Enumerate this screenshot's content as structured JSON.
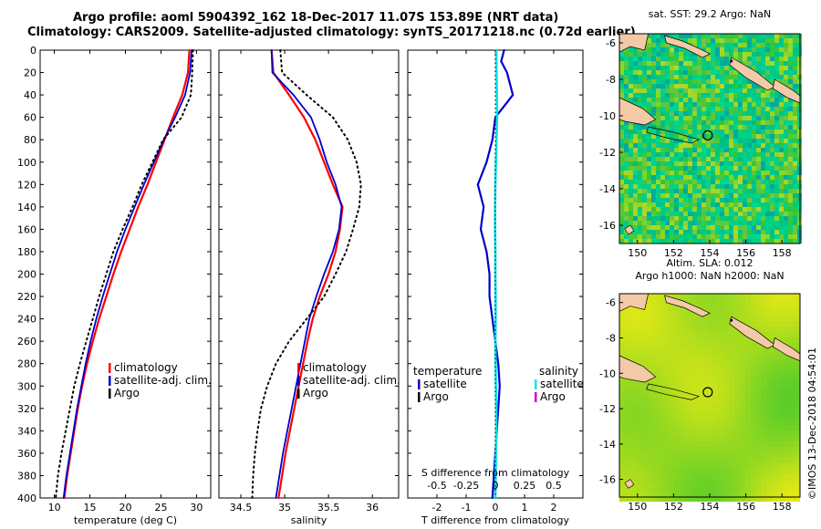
{
  "header": {
    "line1": "Argo profile: aoml 5904392_162 18-Dec-2017 11.07S 153.89E (NRT data)",
    "line2": "Climatology: CARS2009. Satellite-adjusted climatology: synTS_20171218.nc (0.72d earlier)"
  },
  "credit": "©IMOS 13-Dec-2018 04:54:01",
  "colors": {
    "climatology": "#ff0000",
    "satellite": "#0000cc",
    "argo": "#000000",
    "sat_salinity": "#00e5ee",
    "argo_salinity": "#cc00cc",
    "land": "#f4c9a8"
  },
  "depth_ticks": [
    "0",
    "20",
    "40",
    "60",
    "80",
    "100",
    "120",
    "140",
    "160",
    "180",
    "200",
    "220",
    "240",
    "260",
    "280",
    "300",
    "320",
    "340",
    "360",
    "380",
    "400"
  ],
  "chart_data": [
    {
      "type": "line",
      "name": "temperature",
      "xlabel": "temperature (deg C)",
      "ylabel": "depth",
      "xlim": [
        8,
        32
      ],
      "ylim": [
        400,
        0
      ],
      "xticks": [
        "10",
        "15",
        "20",
        "25",
        "30"
      ],
      "legend": [
        "climatology",
        "satellite-adj. clim.",
        "Argo"
      ],
      "legend_position": "lower-right",
      "series": [
        {
          "name": "climatology",
          "depth": [
            0,
            20,
            40,
            60,
            80,
            100,
            120,
            140,
            160,
            180,
            200,
            220,
            240,
            260,
            280,
            300,
            320,
            340,
            360,
            380,
            400
          ],
          "values": [
            29.0,
            28.8,
            28.0,
            26.7,
            25.5,
            24.3,
            23.1,
            21.8,
            20.6,
            19.4,
            18.3,
            17.3,
            16.3,
            15.4,
            14.6,
            13.9,
            13.3,
            12.8,
            12.3,
            11.8,
            11.4
          ]
        },
        {
          "name": "satellite-adj. clim.",
          "depth": [
            0,
            20,
            40,
            60,
            80,
            100,
            120,
            140,
            160,
            180,
            200,
            220,
            240,
            260,
            280,
            300,
            320,
            340,
            360,
            380,
            400
          ],
          "values": [
            29.3,
            29.1,
            28.4,
            27.0,
            25.4,
            24.0,
            22.6,
            21.3,
            20.0,
            18.8,
            17.8,
            16.8,
            15.9,
            15.1,
            14.4,
            13.8,
            13.2,
            12.7,
            12.2,
            11.7,
            11.3
          ]
        },
        {
          "name": "Argo",
          "depth": [
            0,
            20,
            40,
            60,
            80,
            100,
            120,
            140,
            160,
            180,
            200,
            220,
            240,
            260,
            280,
            300,
            320,
            340,
            360,
            380,
            400
          ],
          "values": [
            29.5,
            29.4,
            29.2,
            27.9,
            25.3,
            23.8,
            22.3,
            21.0,
            19.6,
            18.3,
            17.3,
            16.3,
            15.4,
            14.5,
            13.6,
            12.8,
            12.2,
            11.6,
            11.0,
            10.5,
            10.2
          ]
        }
      ]
    },
    {
      "type": "line",
      "name": "salinity",
      "xlabel": "salinity",
      "ylabel": "depth",
      "xlim": [
        34.25,
        36.3
      ],
      "ylim": [
        400,
        0
      ],
      "xticks": [
        "34.5",
        "35",
        "35.5",
        "36"
      ],
      "legend": [
        "climatology",
        "satellite-adj. clim.",
        "Argo"
      ],
      "legend_position": "lower-right",
      "series": [
        {
          "name": "climatology",
          "depth": [
            0,
            20,
            40,
            60,
            80,
            100,
            120,
            140,
            160,
            180,
            200,
            220,
            240,
            260,
            280,
            300,
            320,
            340,
            360,
            380,
            400
          ],
          "values": [
            34.85,
            34.87,
            35.05,
            35.22,
            35.35,
            35.45,
            35.55,
            35.66,
            35.63,
            35.58,
            35.5,
            35.4,
            35.32,
            35.26,
            35.21,
            35.16,
            35.11,
            35.06,
            35.01,
            34.97,
            34.93
          ]
        },
        {
          "name": "satellite-adj. clim.",
          "depth": [
            0,
            20,
            40,
            60,
            80,
            100,
            120,
            140,
            160,
            180,
            200,
            220,
            240,
            260,
            280,
            300,
            320,
            340,
            360,
            380,
            400
          ],
          "values": [
            34.85,
            34.86,
            35.1,
            35.3,
            35.4,
            35.48,
            35.58,
            35.65,
            35.62,
            35.55,
            35.45,
            35.36,
            35.28,
            35.23,
            35.18,
            35.13,
            35.08,
            35.03,
            34.98,
            34.94,
            34.9
          ]
        },
        {
          "name": "Argo",
          "depth": [
            0,
            20,
            40,
            60,
            80,
            100,
            120,
            140,
            160,
            180,
            200,
            220,
            240,
            260,
            280,
            300,
            320,
            340,
            360,
            380,
            400
          ],
          "values": [
            34.95,
            34.97,
            35.25,
            35.55,
            35.72,
            35.82,
            35.87,
            35.85,
            35.78,
            35.7,
            35.58,
            35.45,
            35.25,
            35.05,
            34.9,
            34.8,
            34.73,
            34.69,
            34.66,
            34.64,
            34.63
          ]
        }
      ]
    },
    {
      "type": "line",
      "name": "differences",
      "xlabel": "T difference from climatology",
      "xlabel_top": "S difference from climatology",
      "ylabel": "depth",
      "xlim": [
        -3,
        3
      ],
      "ylim": [
        400,
        0
      ],
      "xticks": [
        "-2",
        "-1",
        "0",
        "1",
        "2"
      ],
      "xticks_s": [
        "-0.5",
        "-0.25",
        "0",
        "0.25",
        "0.5"
      ],
      "legend_groups": [
        {
          "title": "temperature",
          "entries": [
            "satellite",
            "Argo"
          ]
        },
        {
          "title": "salinity",
          "entries": [
            "satellite",
            "Argo"
          ]
        }
      ],
      "series": [
        {
          "name": "T satellite",
          "depth": [
            0,
            10,
            20,
            30,
            40,
            50,
            60,
            80,
            100,
            120,
            140,
            160,
            180,
            200,
            220,
            240,
            260,
            280,
            300,
            320,
            340,
            360,
            380,
            400
          ],
          "values": [
            0.3,
            0.2,
            0.4,
            0.5,
            0.6,
            0.3,
            0.0,
            -0.1,
            -0.3,
            -0.6,
            -0.4,
            -0.5,
            -0.3,
            -0.2,
            -0.2,
            -0.1,
            0.0,
            0.1,
            0.15,
            0.1,
            0.05,
            0.0,
            -0.05,
            -0.1
          ]
        },
        {
          "name": "S satellite",
          "depth": [
            0,
            20,
            40,
            60,
            80,
            100,
            120,
            140,
            160,
            180,
            200,
            220,
            240,
            260,
            280,
            300,
            320,
            340,
            360,
            380,
            400
          ],
          "values": [
            0.03,
            0.04,
            0.05,
            0.06,
            0.04,
            0.02,
            0.0,
            -0.01,
            -0.01,
            0.0,
            0.0,
            0.01,
            0.01,
            0.0,
            0.01,
            0.02,
            0.03,
            0.03,
            0.02,
            0.01,
            0.0
          ]
        }
      ]
    },
    {
      "type": "heatmap",
      "name": "sst_map",
      "title": "sat. SST: 29.2 Argo: NaN",
      "xlim": [
        149,
        159
      ],
      "ylim": [
        -17,
        -5.5
      ],
      "xticks": [
        "150",
        "152",
        "154",
        "156",
        "158"
      ],
      "yticks": [
        "-6",
        "-8",
        "-10",
        "-12",
        "-14",
        "-16"
      ],
      "argo_position": {
        "lon": 153.89,
        "lat": -11.07
      }
    },
    {
      "type": "heatmap",
      "name": "sla_map",
      "title": "Altim. SLA: 0.012",
      "subtitle": "Argo h1000: NaN h2000: NaN",
      "xlim": [
        149,
        159
      ],
      "ylim": [
        -17,
        -5.5
      ],
      "xticks": [
        "150",
        "152",
        "154",
        "156",
        "158"
      ],
      "yticks": [
        "-6",
        "-8",
        "-10",
        "-12",
        "-14",
        "-16"
      ],
      "argo_position": {
        "lon": 153.89,
        "lat": -11.07
      }
    }
  ]
}
